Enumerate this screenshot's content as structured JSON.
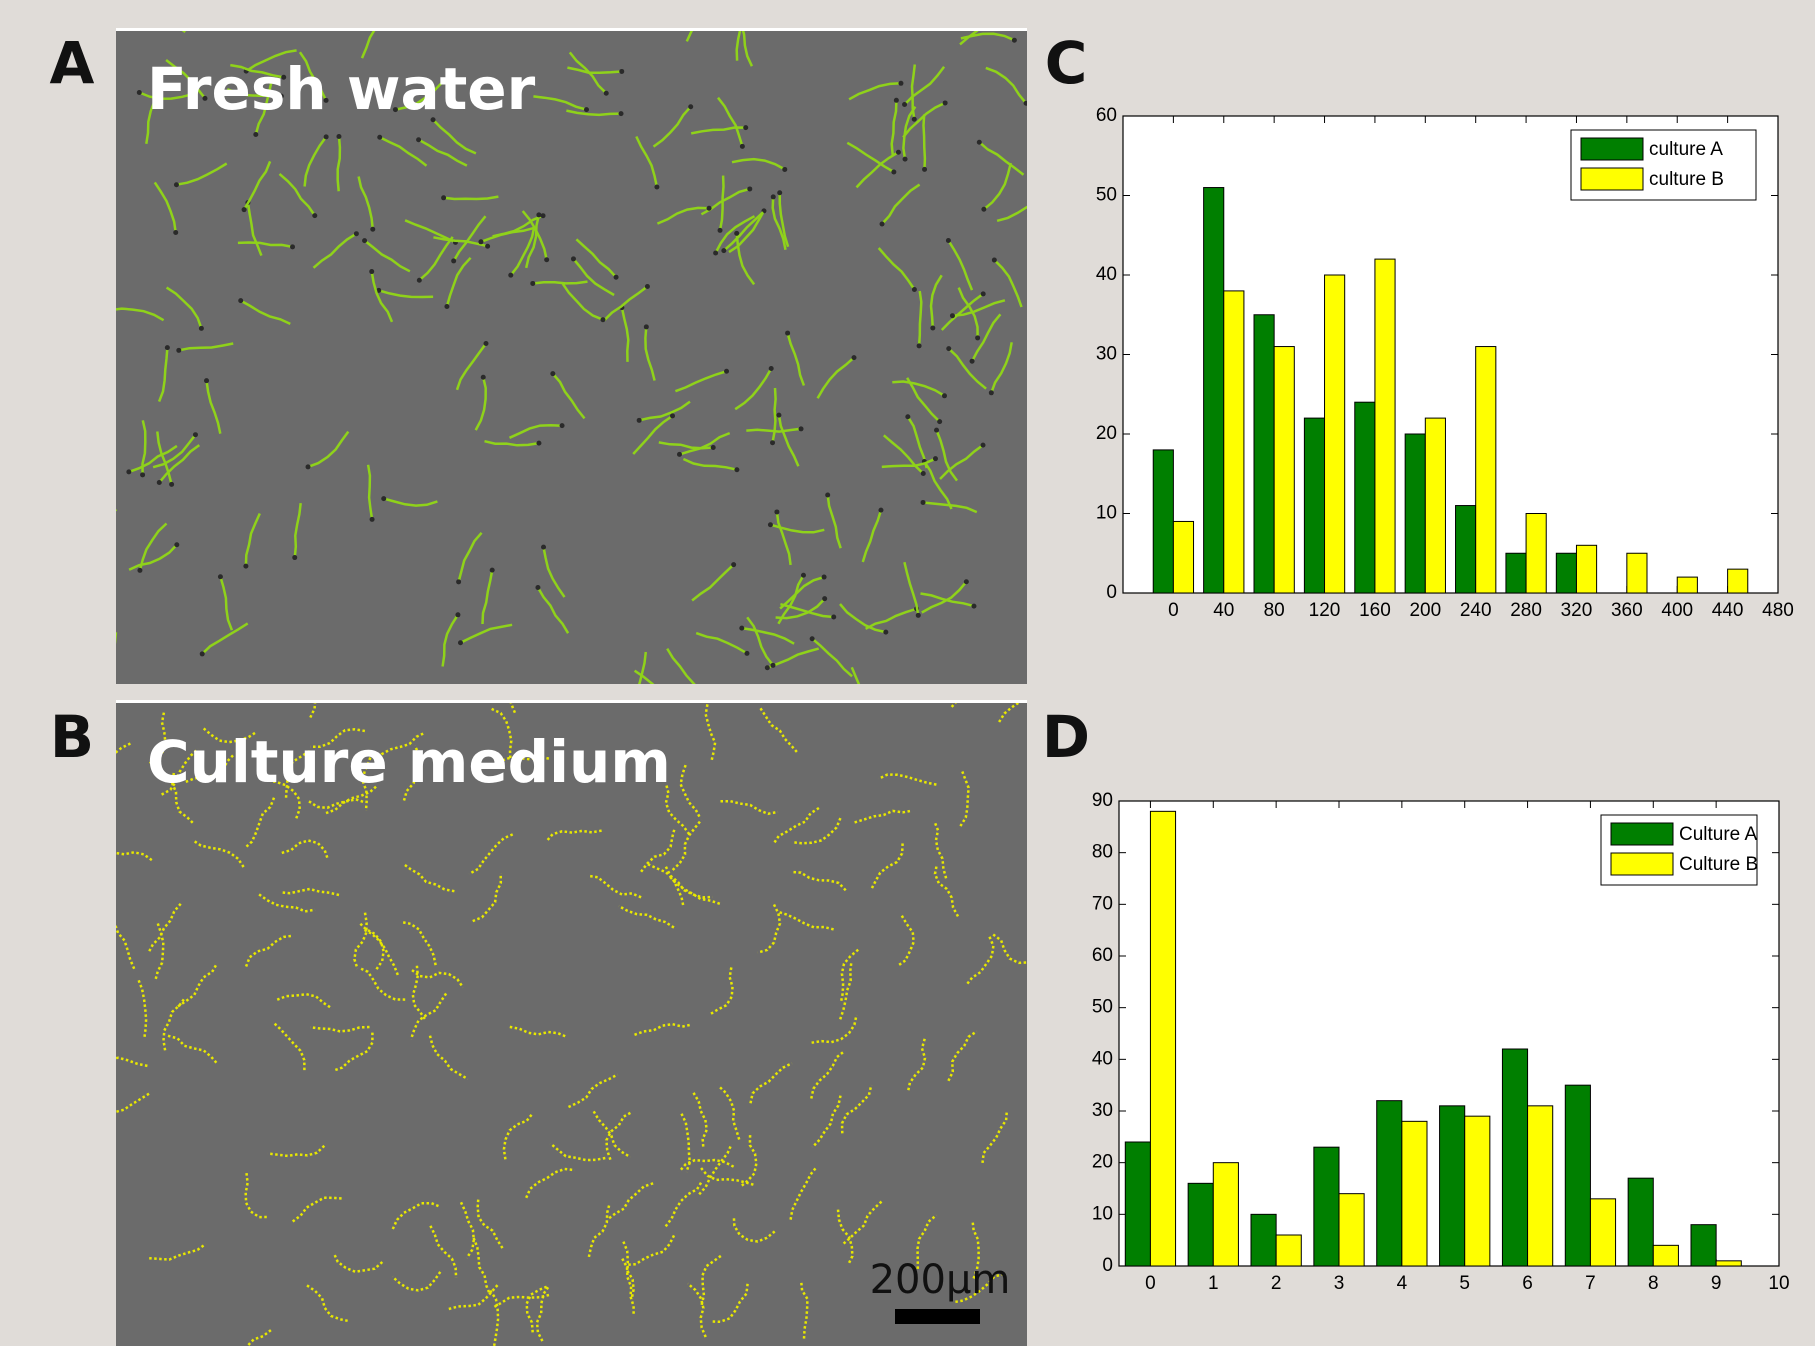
{
  "panel_labels": [
    "A",
    "B",
    "C",
    "D"
  ],
  "images": [
    {
      "title": "Fresh water"
    },
    {
      "title": "Culture medium",
      "scale_bar": "200μm"
    }
  ],
  "chart_data": [
    {
      "type": "bar",
      "x": [
        0,
        40,
        80,
        120,
        160,
        200,
        240,
        280,
        320,
        360,
        400,
        440
      ],
      "series": [
        {
          "name": "culture A",
          "color": "#007f00",
          "values": [
            18,
            51,
            35,
            22,
            24,
            20,
            11,
            5,
            5,
            0,
            0,
            0
          ]
        },
        {
          "name": "culture B",
          "color": "#ffff00",
          "values": [
            9,
            38,
            31,
            40,
            42,
            22,
            31,
            10,
            6,
            5,
            2,
            3
          ]
        }
      ],
      "xlim": [
        -40,
        480
      ],
      "xticks": [
        0,
        40,
        80,
        120,
        160,
        200,
        240,
        280,
        320,
        360,
        400,
        440,
        480
      ],
      "ylim": [
        0,
        60
      ],
      "yticks": [
        0,
        10,
        20,
        30,
        40,
        50,
        60
      ],
      "legend": "upper right"
    },
    {
      "type": "bar",
      "x": [
        0,
        1,
        2,
        3,
        4,
        5,
        6,
        7,
        8,
        9
      ],
      "series": [
        {
          "name": "Culture A",
          "color": "#007f00",
          "values": [
            24,
            16,
            10,
            23,
            32,
            31,
            42,
            35,
            17,
            8
          ]
        },
        {
          "name": "Culture B",
          "color": "#ffff00",
          "values": [
            88,
            20,
            6,
            14,
            28,
            29,
            31,
            13,
            4,
            1
          ]
        }
      ],
      "xlim": [
        -0.5,
        10
      ],
      "xticks": [
        0,
        1,
        2,
        3,
        4,
        5,
        6,
        7,
        8,
        9,
        10
      ],
      "ylim": [
        0,
        90
      ],
      "yticks": [
        0,
        10,
        20,
        30,
        40,
        50,
        60,
        70,
        80,
        90
      ],
      "legend": "upper right"
    }
  ]
}
